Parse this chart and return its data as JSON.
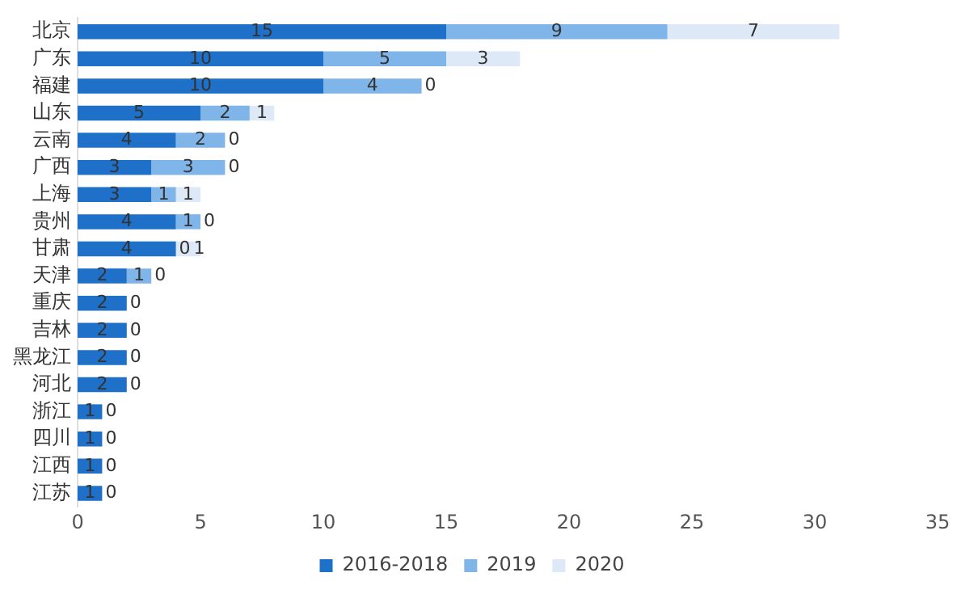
{
  "chart_data": {
    "type": "bar",
    "orientation": "horizontal",
    "stacked": true,
    "categories": [
      "北京",
      "广东",
      "福建",
      "山东",
      "云南",
      "广西",
      "上海",
      "贵州",
      "甘肃",
      "天津",
      "重庆",
      "吉林",
      "黑龙江",
      "河北",
      "浙江",
      "四川",
      "江西",
      "江苏"
    ],
    "series": [
      {
        "name": "2016-2018",
        "color": "#1f70c8",
        "values": [
          15,
          10,
          10,
          5,
          4,
          3,
          3,
          4,
          4,
          2,
          2,
          2,
          2,
          2,
          1,
          1,
          1,
          1
        ],
        "value_labels": [
          "15",
          "10",
          "10",
          "5",
          "4",
          "3",
          "3",
          "4",
          "4",
          "2",
          "2",
          "2",
          "2",
          "2",
          "1",
          "1",
          "1",
          "1"
        ]
      },
      {
        "name": "2019",
        "color": "#7fb5e8",
        "values": [
          9,
          5,
          4,
          2,
          2,
          3,
          1,
          1,
          0,
          1,
          0,
          0,
          0,
          0,
          0,
          0,
          0,
          0
        ],
        "value_labels": [
          "9",
          "5",
          "4",
          "2",
          "2",
          "3",
          "1",
          "1",
          "0",
          "1",
          "0",
          "0",
          "0",
          "0",
          "0",
          "0",
          "0",
          "0"
        ]
      },
      {
        "name": "2020",
        "color": "#dde9f7",
        "values": [
          7,
          3,
          0,
          1,
          0,
          0,
          1,
          0,
          1,
          0,
          0,
          0,
          0,
          0,
          0,
          0,
          0,
          0
        ],
        "value_labels": [
          "7",
          "3",
          "0",
          "1",
          "0",
          "0",
          "1",
          "0",
          "1",
          "0",
          null,
          null,
          null,
          null,
          null,
          null,
          null,
          null
        ]
      }
    ],
    "xlim": [
      0,
      35
    ],
    "xticks": [
      0,
      5,
      10,
      15,
      20,
      25,
      30,
      35
    ],
    "grid": false,
    "legend": "bottom"
  }
}
